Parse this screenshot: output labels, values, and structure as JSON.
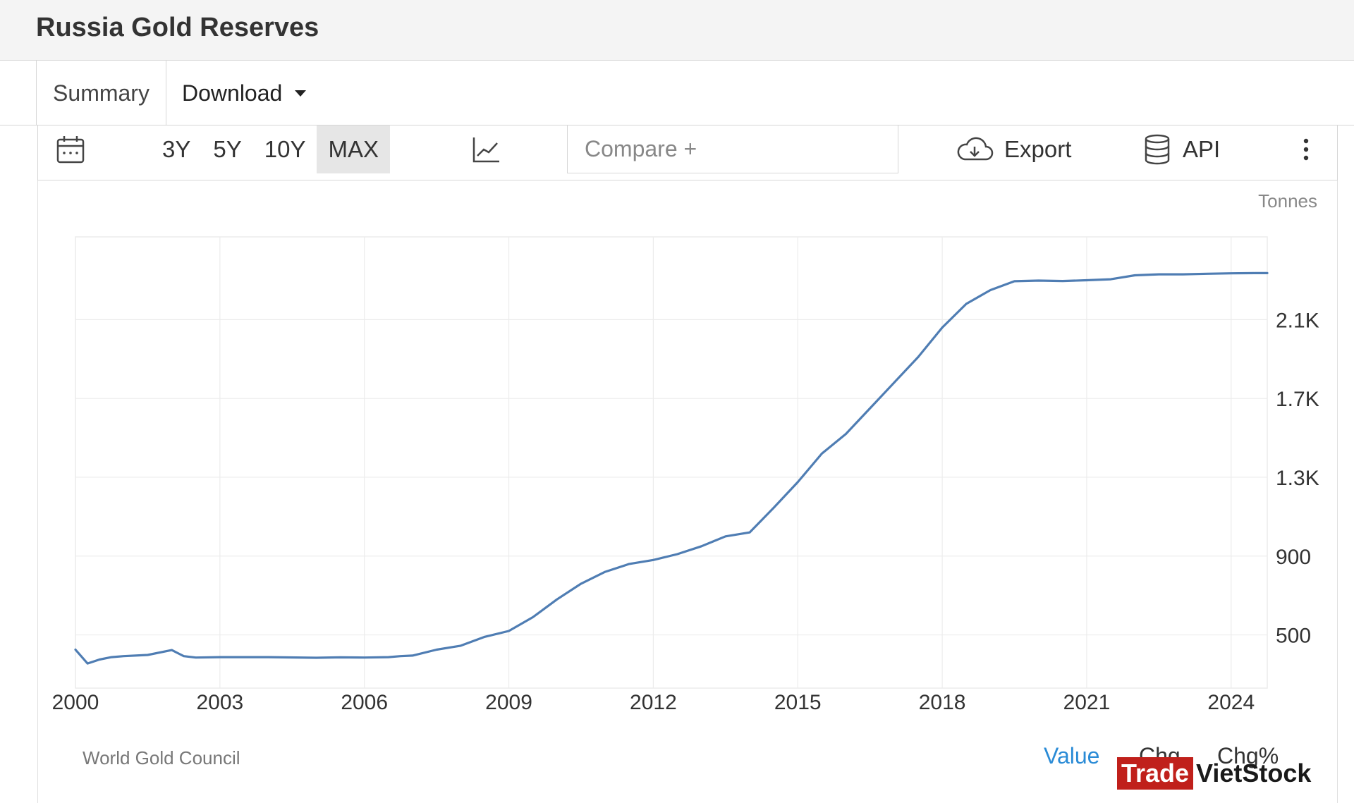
{
  "page": {
    "title": "Russia Gold Reserves"
  },
  "tabs": {
    "summary_label": "Summary",
    "download_label": "Download"
  },
  "toolbar": {
    "ranges": [
      "3Y",
      "5Y",
      "10Y",
      "MAX"
    ],
    "active_range": "MAX",
    "compare_placeholder": "Compare +",
    "export_label": "Export",
    "api_label": "API"
  },
  "footer": {
    "source": "World Gold Council",
    "value_label": "Value",
    "chg_label": "Chg",
    "chg_pct_label": "Chg%"
  },
  "watermark": {
    "part1": "Trade",
    "part2": "VietStock"
  },
  "colors": {
    "line": "#4f7db3",
    "active_tab": "#2a8bd6",
    "grid": "#ececec",
    "watermark_red": "#c0201b"
  },
  "chart_data": {
    "type": "line",
    "title": "",
    "xlabel": "",
    "ylabel": "Tonnes",
    "x_ticks": [
      "2000",
      "2003",
      "2006",
      "2009",
      "2012",
      "2015",
      "2018",
      "2021",
      "2024"
    ],
    "y_ticks": [
      "500",
      "900",
      "1.3K",
      "1.7K",
      "2.1K"
    ],
    "y_tick_values": [
      500,
      900,
      1300,
      1700,
      2100
    ],
    "xlim": [
      2000,
      2024.75
    ],
    "ylim": [
      230,
      2520
    ],
    "grid": true,
    "series": [
      {
        "x": [
          2000.0,
          2000.25,
          2000.5,
          2000.75,
          2001.0,
          2001.5,
          2002.0,
          2002.25,
          2002.5,
          2003.0,
          2004.0,
          2005.0,
          2005.5,
          2006.0,
          2006.5,
          2006.75,
          2007.0,
          2007.5,
          2008.0,
          2008.5,
          2009.0,
          2009.5,
          2010.0,
          2010.5,
          2011.0,
          2011.5,
          2012.0,
          2012.5,
          2013.0,
          2013.5,
          2014.0,
          2014.5,
          2015.0,
          2015.5,
          2016.0,
          2016.5,
          2017.0,
          2017.5,
          2018.0,
          2018.5,
          2019.0,
          2019.5,
          2020.0,
          2020.5,
          2021.0,
          2021.5,
          2022.0,
          2022.5,
          2023.0,
          2023.5,
          2024.0,
          2024.5,
          2024.75
        ],
        "y": [
          425,
          355,
          375,
          387,
          392,
          398,
          423,
          392,
          385,
          387,
          387,
          384,
          386,
          385,
          387,
          392,
          395,
          425,
          445,
          490,
          520,
          590,
          680,
          760,
          820,
          860,
          880,
          910,
          950,
          1000,
          1020,
          1145,
          1275,
          1420,
          1520,
          1650,
          1780,
          1910,
          2060,
          2180,
          2250,
          2295,
          2298,
          2296,
          2300,
          2305,
          2325,
          2330,
          2330,
          2333,
          2335,
          2336,
          2336
        ]
      }
    ]
  }
}
